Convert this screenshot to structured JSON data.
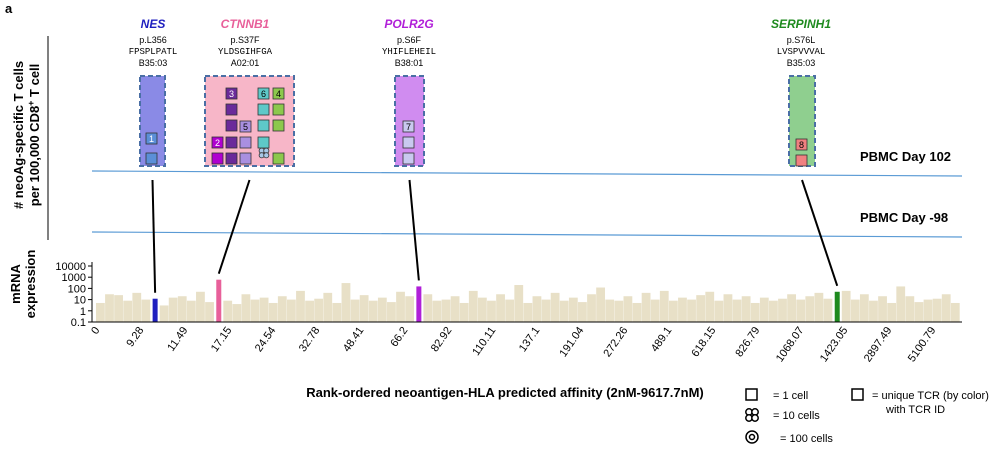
{
  "panel_letter": "a",
  "y_axis_top_label_line1": "# neoAg-specific T cells",
  "y_axis_top_label_line2_pre": "per 100,000 CD8",
  "y_axis_top_label_line2_sup": "+",
  "y_axis_top_label_line2_post": " T cell",
  "mrna_label_line1": "mRNA",
  "mrna_label_line2": "expression",
  "pbmc_labels": [
    "PBMC Day 102",
    "PBMC Day -98"
  ],
  "x_axis_title": "Rank-ordered neoantigen-HLA predicted affinity (2nM-9617.7nM)",
  "legend": {
    "one_cell": "= 1 cell",
    "ten_cells": "= 10 cells",
    "hundred_cells": "= 100 cells",
    "unique_tcr_line1": "= unique TCR (by color)",
    "unique_tcr_line2": "with TCR ID"
  },
  "colors": {
    "background_bars": "#e8e0c7",
    "pbmc_line": "#5b9bd5",
    "box_border": "#4a6fa5"
  },
  "genes": [
    {
      "name": "NES",
      "color": "#1f1fbf",
      "mutation": "p.L356",
      "peptide": "FPSPLPATL",
      "hla": "B35:03",
      "box_fill": "#8a8ae6",
      "rank_index": 6
    },
    {
      "name": "CTNNB1",
      "color": "#e8609a",
      "mutation": "p.S37F",
      "peptide": "YLDSGIHFGA",
      "hla": "A02:01",
      "box_fill": "#f7b6c8",
      "rank_index": 13
    },
    {
      "name": "POLR2G",
      "color": "#b01fd8",
      "mutation": "p.S6F",
      "peptide": "YHIFLEHEIL",
      "hla": "B38:01",
      "box_fill": "#d08cf0",
      "rank_index": 35
    },
    {
      "name": "SERPINH1",
      "color": "#1e8a1e",
      "mutation": "p.S76L",
      "peptide": "LVSPVVVAL",
      "hla": "B35:03",
      "box_fill": "#8fcf8f",
      "rank_index": 81
    }
  ],
  "tcr_cells": {
    "NES": [
      {
        "id": "1",
        "color": "#5b8fd8"
      },
      {
        "id": "",
        "color": "#5b8fd8"
      }
    ],
    "CTNNB1": [
      {
        "id": "3",
        "color": "#6a2a9a"
      },
      {
        "id": "",
        "color": "#6a2a9a"
      },
      {
        "id": "",
        "color": "#6a2a9a"
      },
      {
        "id": "",
        "color": "#6a2a9a"
      },
      {
        "id": "",
        "color": "#6a2a9a"
      },
      {
        "id": "5",
        "color": "#a98fe0"
      },
      {
        "id": "",
        "color": "#a98fe0"
      },
      {
        "id": "",
        "color": "#a98fe0"
      },
      {
        "id": "2",
        "color": "#b000d0"
      },
      {
        "id": "",
        "color": "#b000d0"
      },
      {
        "id": "6",
        "color": "#5ec8c8"
      },
      {
        "id": "",
        "color": "#5ec8c8"
      },
      {
        "id": "",
        "color": "#5ec8c8"
      },
      {
        "id": "",
        "color": "#5ec8c8"
      },
      {
        "id": "4",
        "color": "#8cc84c"
      },
      {
        "id": "",
        "color": "#8cc84c"
      },
      {
        "id": "",
        "color": "#8cc84c"
      },
      {
        "id": "",
        "color": "#8cc84c"
      }
    ],
    "POLR2G": [
      {
        "id": "7",
        "color": "#c9c9f0"
      },
      {
        "id": "",
        "color": "#c9c9f0"
      },
      {
        "id": "",
        "color": "#c9c9f0"
      }
    ],
    "SERPINH1": [
      {
        "id": "8",
        "color": "#f08080"
      },
      {
        "id": "",
        "color": "#f08080"
      }
    ]
  },
  "chart_data": {
    "type": "bar",
    "ylabel": "mRNA expression",
    "y_scale": "log",
    "ylim": [
      0.1,
      10000
    ],
    "y_ticks": [
      "10000",
      "1000",
      "100",
      "10",
      "1",
      "0.1"
    ],
    "x_tick_labels": [
      "0",
      "9.28",
      "11.49",
      "17.15",
      "24.54",
      "32.78",
      "48.41",
      "66.2",
      "82.92",
      "110.11",
      "137.1",
      "191.04",
      "272.26",
      "489.1",
      "618.15",
      "826.79",
      "1068.07",
      "1423.05",
      "2897.49",
      "5100.79"
    ],
    "values": [
      5,
      30,
      25,
      8,
      40,
      10,
      12,
      3,
      15,
      20,
      8,
      50,
      6,
      600,
      8,
      4,
      30,
      10,
      15,
      5,
      20,
      10,
      60,
      8,
      12,
      40,
      5,
      300,
      10,
      25,
      8,
      15,
      6,
      50,
      20,
      150,
      30,
      8,
      10,
      20,
      5,
      60,
      15,
      8,
      30,
      10,
      200,
      5,
      20,
      10,
      40,
      8,
      15,
      6,
      30,
      120,
      10,
      8,
      20,
      5,
      40,
      10,
      60,
      8,
      15,
      10,
      25,
      50,
      8,
      30,
      10,
      20,
      5,
      15,
      8,
      12,
      30,
      10,
      20,
      40,
      12,
      50,
      60,
      10,
      30,
      8,
      20,
      5,
      150,
      20,
      6,
      10,
      12,
      30,
      5
    ],
    "highlight_indices": [
      6,
      13,
      35,
      81
    ],
    "highlight_colors": [
      "#1f1fbf",
      "#e8609a",
      "#b01fd8",
      "#1e8a1e"
    ]
  }
}
